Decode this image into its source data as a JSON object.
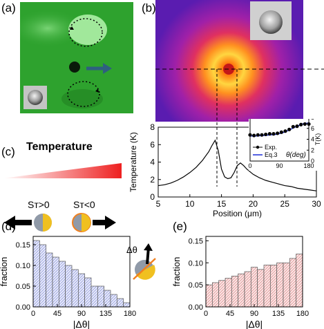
{
  "panels": {
    "a": {
      "label": "(a)"
    },
    "b": {
      "label": "(b)"
    },
    "c": {
      "label": "(c)",
      "temperature_title": "Temperature",
      "st_pos": "Sт>0",
      "st_neg": "Sт<0"
    },
    "d": {
      "label": "(d)"
    },
    "e": {
      "label": "(e)"
    }
  },
  "colors": {
    "panel_a_bg": "#2ea22e",
    "panel_b_bg": "#6a1fb0",
    "hist_d_fill": "#d8dcf4",
    "hist_e_fill": "#f8d4d4",
    "gradient_start": "#ffffff",
    "gradient_end": "#ee2020",
    "janus_gold": "#f0c020",
    "janus_gray": "#909aa8"
  },
  "chart_data": [
    {
      "id": "temperature-profile",
      "type": "line",
      "xlabel": "Position (μm)",
      "ylabel": "Temperature (K)",
      "xlim": [
        5,
        30
      ],
      "ylim": [
        0,
        8
      ],
      "xticks": [
        5,
        10,
        15,
        20,
        25,
        30
      ],
      "yticks": [
        0,
        2,
        4,
        6,
        8
      ],
      "x": [
        5,
        6,
        7,
        8,
        9,
        10,
        11,
        12,
        13,
        13.5,
        14,
        14.5,
        15,
        15.5,
        16,
        16.5,
        17,
        17.5,
        18,
        18.5,
        19,
        20,
        21,
        22,
        23,
        24,
        25,
        26,
        27,
        28,
        29,
        30
      ],
      "y": [
        1.3,
        1.4,
        1.6,
        1.9,
        2.3,
        2.8,
        3.4,
        4.2,
        5.2,
        5.9,
        6.5,
        5.3,
        3.2,
        2.3,
        2.1,
        2.2,
        2.8,
        3.6,
        3.9,
        3.6,
        3.2,
        2.6,
        2.2,
        1.9,
        1.7,
        1.5,
        1.3,
        1.2,
        1.0,
        0.9,
        0.8,
        0.7
      ]
    },
    {
      "id": "inset-T-theta",
      "type": "line",
      "xlabel": "θ(deg)",
      "ylabel": "T(K)",
      "xlim": [
        0,
        180
      ],
      "ylim": [
        0,
        8
      ],
      "xticks": [
        0,
        90,
        180
      ],
      "yticks": [
        0,
        2,
        4,
        6,
        8
      ],
      "series": [
        {
          "name": "Exp.",
          "x": [
            0,
            12,
            24,
            36,
            48,
            60,
            72,
            84,
            96,
            108,
            120,
            132,
            144,
            156,
            168,
            180
          ],
          "y": [
            4.8,
            4.7,
            4.8,
            4.8,
            4.9,
            5.0,
            5.0,
            5.1,
            5.3,
            5.5,
            5.8,
            6.3,
            6.4,
            6.7,
            6.8,
            6.8
          ]
        },
        {
          "name": "Eq.3",
          "x": [
            0,
            20,
            40,
            60,
            80,
            100,
            120,
            140,
            160,
            180
          ],
          "y": [
            4.6,
            4.6,
            4.7,
            4.8,
            4.9,
            5.2,
            5.7,
            6.3,
            6.8,
            7.0
          ]
        }
      ]
    },
    {
      "id": "histogram-d",
      "type": "bar",
      "xlabel": "|Δθ|",
      "ylabel": "fraction",
      "xlim": [
        0,
        180
      ],
      "ylim": [
        0,
        0.17
      ],
      "xticks": [
        0,
        45,
        90,
        135,
        180
      ],
      "yticks": [
        0.0,
        0.05,
        0.1,
        0.15
      ],
      "bin_width": 12,
      "values": [
        0.16,
        0.15,
        0.13,
        0.12,
        0.11,
        0.1,
        0.09,
        0.08,
        0.07,
        0.05,
        0.05,
        0.04,
        0.03,
        0.02,
        0.01
      ]
    },
    {
      "id": "histogram-e",
      "type": "bar",
      "xlabel": "|Δθ|",
      "ylabel": "fraction",
      "xlim": [
        0,
        180
      ],
      "ylim": [
        0,
        0.16
      ],
      "xticks": [
        0,
        45,
        90,
        135,
        180
      ],
      "yticks": [
        0.0,
        0.05,
        0.1,
        0.15
      ],
      "bin_width": 12,
      "values": [
        0.05,
        0.055,
        0.06,
        0.065,
        0.07,
        0.075,
        0.08,
        0.09,
        0.085,
        0.095,
        0.095,
        0.1,
        0.1,
        0.11,
        0.12
      ]
    }
  ]
}
